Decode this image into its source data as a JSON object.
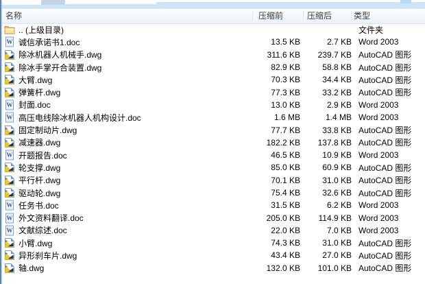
{
  "header": {
    "columns": [
      {
        "id": "name",
        "label": "名称"
      },
      {
        "id": "size",
        "label": "压缩前"
      },
      {
        "id": "packed",
        "label": "压缩后"
      },
      {
        "id": "type",
        "label": "类型"
      }
    ]
  },
  "files": [
    {
      "name": ".. (上级目录)",
      "size": "",
      "packed": "",
      "type": "文件夹",
      "icon": "folder"
    },
    {
      "name": "诚信承诺书1.doc",
      "size": "13.5 KB",
      "packed": "2.7 KB",
      "type": "Word 2003",
      "icon": "word-doc"
    },
    {
      "name": "除冰机器人机械手.dwg",
      "size": "311.6 KB",
      "packed": "239.7 KB",
      "type": "AutoCAD 图形",
      "icon": "autocad-dwg"
    },
    {
      "name": "除冰手掌开合装置.dwg",
      "size": "82.9 KB",
      "packed": "58.8 KB",
      "type": "AutoCAD 图形",
      "icon": "autocad-dwg"
    },
    {
      "name": "大臂.dwg",
      "size": "70.3 KB",
      "packed": "34.4 KB",
      "type": "AutoCAD 图形",
      "icon": "autocad-dwg"
    },
    {
      "name": "弹簧杆.dwg",
      "size": "77.3 KB",
      "packed": "33.2 KB",
      "type": "AutoCAD 图形",
      "icon": "autocad-dwg"
    },
    {
      "name": "封面.doc",
      "size": "13.0 KB",
      "packed": "2.9 KB",
      "type": "Word 2003",
      "icon": "word-doc"
    },
    {
      "name": "高压电线除冰机器人机构设计.doc",
      "size": "1.6 MB",
      "packed": "1.4 MB",
      "type": "Word 2003",
      "icon": "word-doc"
    },
    {
      "name": "固定制动片.dwg",
      "size": "77.7 KB",
      "packed": "33.8 KB",
      "type": "AutoCAD 图形",
      "icon": "autocad-dwg"
    },
    {
      "name": "减速器.dwg",
      "size": "182.2 KB",
      "packed": "137.8 KB",
      "type": "AutoCAD 图形",
      "icon": "autocad-dwg"
    },
    {
      "name": "开题报告.doc",
      "size": "46.5 KB",
      "packed": "10.9 KB",
      "type": "Word 2003",
      "icon": "word-doc"
    },
    {
      "name": "轮支撑.dwg",
      "size": "85.0 KB",
      "packed": "60.9 KB",
      "type": "AutoCAD 图形",
      "icon": "autocad-dwg"
    },
    {
      "name": "平行杆.dwg",
      "size": "70.1 KB",
      "packed": "31.0 KB",
      "type": "AutoCAD 图形",
      "icon": "autocad-dwg"
    },
    {
      "name": "驱动轮.dwg",
      "size": "75.4 KB",
      "packed": "32.6 KB",
      "type": "AutoCAD 图形",
      "icon": "autocad-dwg"
    },
    {
      "name": "任务书.doc",
      "size": "31.5 KB",
      "packed": "6.2 KB",
      "type": "Word 2003",
      "icon": "word-doc"
    },
    {
      "name": "外文资料翻译.doc",
      "size": "205.0 KB",
      "packed": "114.9 KB",
      "type": "Word 2003",
      "icon": "word-doc"
    },
    {
      "name": "文献综述.doc",
      "size": "22.0 KB",
      "packed": "7.0 KB",
      "type": "Word 2003",
      "icon": "word-doc"
    },
    {
      "name": "小臂.dwg",
      "size": "74.3 KB",
      "packed": "31.0 KB",
      "type": "AutoCAD 图形",
      "icon": "autocad-dwg"
    },
    {
      "name": "异形刹车片.dwg",
      "size": "43.4 KB",
      "packed": "27.0 KB",
      "type": "AutoCAD 图形",
      "icon": "autocad-dwg"
    },
    {
      "name": "轴.dwg",
      "size": "132.0 KB",
      "packed": "101.0 KB",
      "type": "AutoCAD 图形",
      "icon": "autocad-dwg"
    }
  ],
  "colors": {
    "toolbar_strip_blue": "#cfe4f6",
    "window_border_blue": "#4c749c",
    "header_text": "#3c3c3c",
    "row_text": "#000000",
    "folder_yellow": "#f0c060",
    "word_blue": "#2b579a",
    "autocad_gold": "#f3c522",
    "autocad_navy": "#17355e"
  }
}
